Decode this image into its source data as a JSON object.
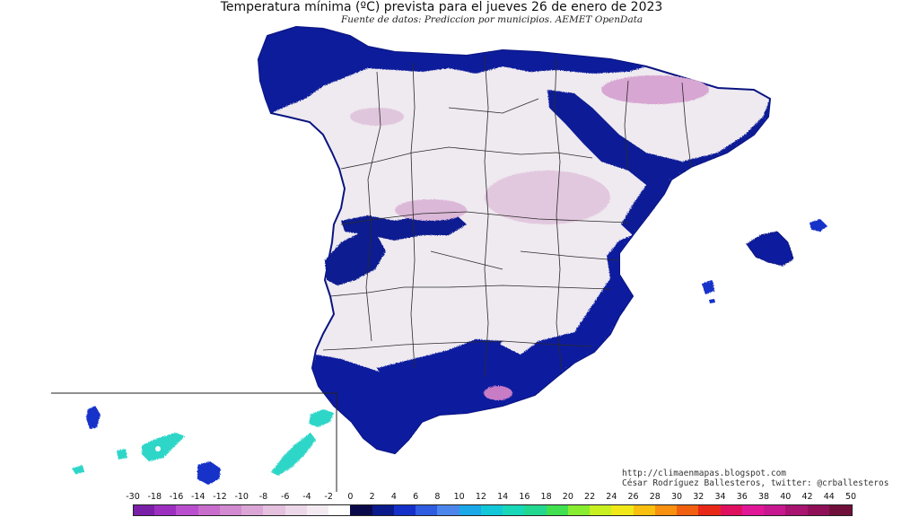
{
  "title": "Temperatura mínima (ºC) prevista para el jueves 26 de enero de 2023",
  "subtitle": "Fuente de datos: Prediccion por municipios. AEMET OpenData",
  "credits": {
    "line1": "http://climaenmapas.blogspot.com",
    "line2": "César Rodríguez Ballesteros, twitter: @crballesteros"
  },
  "legend": {
    "tick_labels": [
      "-30",
      "-18",
      "-16",
      "-14",
      "-12",
      "-10",
      "-8",
      "-6",
      "-4",
      "-2",
      "0",
      "2",
      "4",
      "6",
      "8",
      "10",
      "12",
      "14",
      "16",
      "18",
      "20",
      "22",
      "24",
      "26",
      "28",
      "30",
      "32",
      "34",
      "36",
      "38",
      "40",
      "42",
      "44",
      "50"
    ],
    "colors": [
      "#7a1fa8",
      "#9c2fc0",
      "#b94fcf",
      "#c86dcc",
      "#d28ad0",
      "#dba6d6",
      "#e5c0df",
      "#ecd8e8",
      "#f4ebf2",
      "#ffffff",
      "#0a0a4a",
      "#0a1a8a",
      "#1430c8",
      "#2f5ce0",
      "#4c86ec",
      "#1aa8e8",
      "#12c8d8",
      "#18d8b8",
      "#22d890",
      "#40e050",
      "#88ec30",
      "#c8f020",
      "#f0e818",
      "#f8c010",
      "#f89010",
      "#f06010",
      "#e82818",
      "#e01060",
      "#e01898",
      "#c81890",
      "#a81470",
      "#901058",
      "#70103a"
    ],
    "range_min": -30,
    "range_max": 50
  },
  "map_colors": {
    "sea": "#ffffff",
    "land_cold": "#e8e2ea",
    "land_white": "#f7f5f8",
    "frost_pink": "#d9b4d6",
    "coast_dark_blue": "#0a1480",
    "coast_blue": "#1230c8",
    "canary_cyan": "#2fd6c8",
    "border": "#222222"
  }
}
